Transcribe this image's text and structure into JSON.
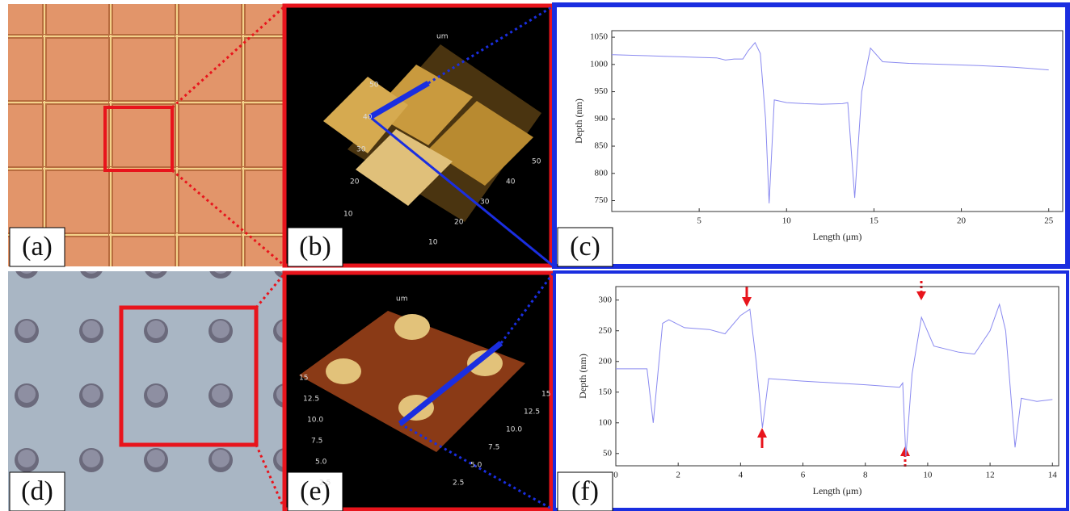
{
  "panels": {
    "labels": [
      "(a)",
      "(b)",
      "(c)",
      "(d)",
      "(e)",
      "(f)"
    ],
    "b_ticks": [
      "10",
      "20",
      "30",
      "40",
      "50"
    ],
    "b_unit": "um",
    "e_ticks": [
      "2.5",
      "5.0",
      "7.5",
      "10.0",
      "12.5",
      "15"
    ],
    "e_unit": "um"
  },
  "chart_data": [
    {
      "type": "line",
      "x_label": "Length (μm)",
      "y_label": "Depth (nm)",
      "x": [
        0,
        1,
        2,
        3,
        4,
        5,
        6,
        6.5,
        7,
        7.5,
        7.8,
        8.2,
        8.5,
        8.8,
        9.0,
        9.3,
        10,
        11,
        12,
        13.2,
        13.5,
        13.9,
        14.3,
        14.8,
        15.5,
        17,
        19,
        21,
        23,
        25
      ],
      "series": [
        {
          "color": "#8a8af0",
          "values": [
            1018,
            1017,
            1016,
            1015,
            1014,
            1013,
            1012,
            1008,
            1010,
            1010,
            1025,
            1040,
            1020,
            900,
            745,
            935,
            930,
            928,
            927,
            928,
            930,
            755,
            950,
            1030,
            1005,
            1002,
            1000,
            998,
            995,
            990
          ]
        }
      ],
      "xlim": [
        0,
        25.8
      ],
      "ylim": [
        730,
        1062
      ],
      "xticks": [
        5,
        10,
        15,
        20,
        25
      ],
      "yticks": [
        750,
        800,
        850,
        900,
        950,
        1000,
        1050
      ]
    },
    {
      "type": "line",
      "x_label": "Length (μm)",
      "y_label": "Depth (nm)",
      "x": [
        0,
        1.0,
        1.2,
        1.5,
        1.7,
        2.2,
        3,
        3.5,
        4.0,
        4.3,
        4.5,
        4.7,
        4.9,
        6,
        8,
        9.1,
        9.2,
        9.3,
        9.5,
        9.8,
        10.2,
        11,
        11.5,
        12,
        12.3,
        12.5,
        12.8,
        13.0,
        13.5,
        14
      ],
      "series": [
        {
          "color": "#8a8af0",
          "values": [
            188,
            188,
            100,
            262,
            268,
            255,
            252,
            245,
            275,
            285,
            200,
            92,
            172,
            168,
            162,
            158,
            165,
            45,
            180,
            272,
            225,
            215,
            212,
            250,
            293,
            250,
            60,
            140,
            135,
            138
          ]
        }
      ],
      "xlim": [
        0,
        14.2
      ],
      "ylim": [
        30,
        322
      ],
      "xticks": [
        0,
        2,
        4,
        6,
        8,
        10,
        12,
        14
      ],
      "yticks": [
        50,
        100,
        150,
        200,
        250,
        300
      ]
    }
  ]
}
